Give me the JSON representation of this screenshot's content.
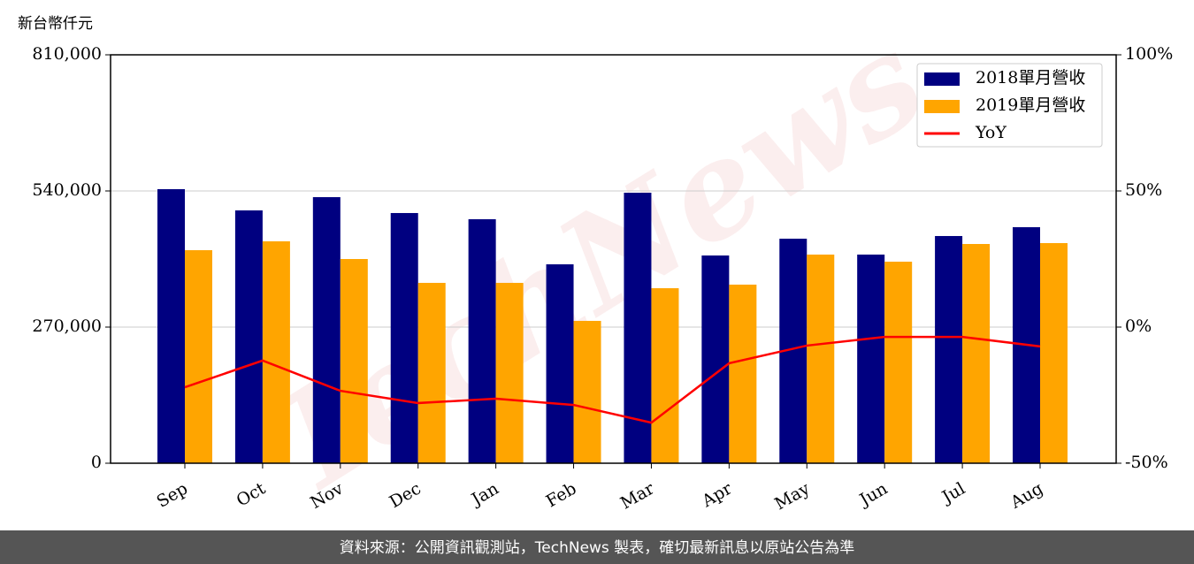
{
  "chart_data": {
    "type": "bar_line",
    "y_unit_label": "新台幣仟元",
    "watermark": "TechNews",
    "footer": "資料來源：公開資訊觀測站，TechNews 製表，確切最新訊息以原站公告為準",
    "categories": [
      "Sep",
      "Oct",
      "Nov",
      "Dec",
      "Jan",
      "Feb",
      "Mar",
      "Apr",
      "May",
      "Jun",
      "Jul",
      "Aug"
    ],
    "series": [
      {
        "name": "2018單月營收",
        "color": "#000080",
        "kind": "bar",
        "values": [
          543500,
          501400,
          527700,
          496200,
          483900,
          394500,
          536500,
          412000,
          445300,
          413800,
          450600,
          468100
        ]
      },
      {
        "name": "2019單月營收",
        "color": "#ffa500",
        "kind": "bar",
        "values": [
          422500,
          440100,
          405000,
          357700,
          357700,
          282300,
          347100,
          354200,
          413800,
          399700,
          434800,
          436600
        ]
      },
      {
        "name": "YoY",
        "color": "#ff0000",
        "kind": "line",
        "axis": "y2",
        "values": [
          -22.1,
          -12.3,
          -23.4,
          -27.9,
          -26.3,
          -28.6,
          -35.1,
          -13.3,
          -6.8,
          -3.6,
          -3.6,
          -7.1
        ]
      }
    ],
    "ylim": [
      0,
      810000
    ],
    "yticks": [
      0,
      {
        "value": 270000,
        "label": "270,000"
      },
      {
        "value": 540000,
        "label": "540,000"
      },
      {
        "value": 810000,
        "label": "810,000"
      }
    ],
    "y2lim": [
      -50,
      100
    ],
    "y2ticks": [
      {
        "value": -50,
        "label": "-50%"
      },
      {
        "value": 0,
        "label": "0%"
      },
      {
        "value": 50,
        "label": "50%"
      },
      {
        "value": 100,
        "label": "100%"
      }
    ],
    "grid": true,
    "legend": "upper right"
  }
}
